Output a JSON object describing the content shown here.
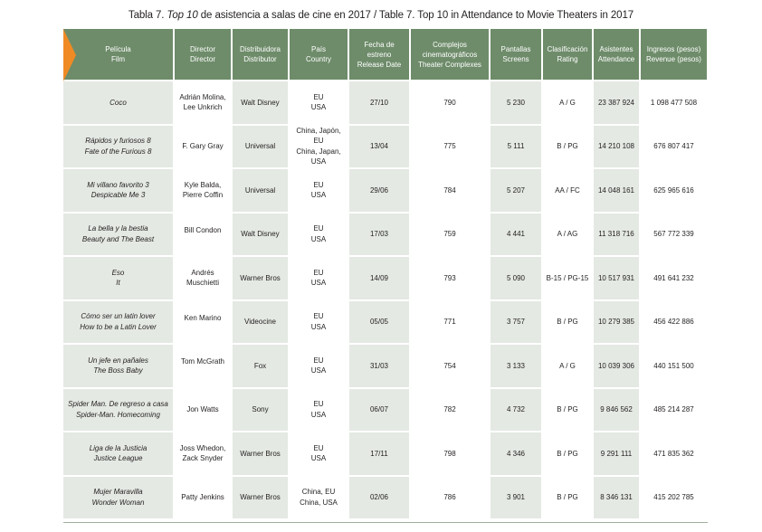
{
  "title": {
    "prefix": "Tabla 7. ",
    "italic": "Top 10",
    "suffix": " de asistencia a salas de cine en 2017 / Table 7. Top 10 in Attendance to Movie Theaters in 2017"
  },
  "columns": [
    {
      "es": "Película",
      "en": "Film"
    },
    {
      "es": "Director",
      "en": "Director"
    },
    {
      "es": "Distribuidora",
      "en": "Distributor"
    },
    {
      "es": "País",
      "en": "Country"
    },
    {
      "es": "Fecha de estreno",
      "en": "Release Date"
    },
    {
      "es": "Complejos cinematográficos",
      "en": "Theater Complexes"
    },
    {
      "es": "Pantallas",
      "en": "Screens"
    },
    {
      "es": "Clasificación",
      "en": "Rating"
    },
    {
      "es": "Asistentes",
      "en": "Attendance"
    },
    {
      "es": "Ingresos (pesos)",
      "en": "Revenue (pesos)"
    }
  ],
  "rows": [
    {
      "film": [
        "Coco"
      ],
      "director": [
        "Adrián Molina,",
        "Lee Unkrich"
      ],
      "distributor": "Walt Disney",
      "country": [
        "EU",
        "USA"
      ],
      "date": "27/10",
      "complexes": "790",
      "screens": "5 230",
      "rating": "A / G",
      "attendance": "23 387 924",
      "revenue": "1 098 477 508"
    },
    {
      "film": [
        "Rápidos y furiosos 8",
        "Fate of the Furious 8"
      ],
      "director": [
        "F. Gary Gray"
      ],
      "distributor": "Universal",
      "country": [
        "China, Japón,",
        "EU",
        "China, Japan,",
        "USA"
      ],
      "date": "13/04",
      "complexes": "775",
      "screens": "5 111",
      "rating": "B / PG",
      "attendance": "14 210 108",
      "revenue": "676 807 417"
    },
    {
      "film": [
        "Mi villano favorito 3",
        "Despicable Me 3"
      ],
      "director": [
        "Kyle Balda,",
        "Pierre Coffin"
      ],
      "distributor": "Universal",
      "country": [
        "EU",
        "USA"
      ],
      "date": "29/06",
      "complexes": "784",
      "screens": "5 207",
      "rating": "AA / FC",
      "attendance": "14 048 161",
      "revenue": "625 965 616"
    },
    {
      "film": [
        "La bella y la bestia",
        "Beauty and The Beast"
      ],
      "director": [
        "Bill Condon"
      ],
      "distributor": "Walt Disney",
      "country": [
        "EU",
        "USA"
      ],
      "date": "17/03",
      "complexes": "759",
      "screens": "4 441",
      "rating": "A / AG",
      "attendance": "11 318 716",
      "revenue": "567 772 339"
    },
    {
      "film": [
        "Eso",
        "It"
      ],
      "director": [
        "Andrés",
        "Muschietti"
      ],
      "distributor": "Warner Bros",
      "country": [
        "EU",
        "USA"
      ],
      "date": "14/09",
      "complexes": "793",
      "screens": "5 090",
      "rating": "B-15 / PG-15",
      "attendance": "10 517 931",
      "revenue": "491 641 232"
    },
    {
      "film": [
        "Cómo ser un latin lover",
        "How to be a Latin Lover"
      ],
      "director": [
        "Ken Marino"
      ],
      "distributor": "Videocine",
      "country": [
        "EU",
        "USA"
      ],
      "date": "05/05",
      "complexes": "771",
      "screens": "3 757",
      "rating": "B / PG",
      "attendance": "10 279 385",
      "revenue": "456 422 886"
    },
    {
      "film": [
        "Un jefe en pañales",
        "The Boss Baby"
      ],
      "director": [
        "Tom McGrath"
      ],
      "distributor": "Fox",
      "country": [
        "EU",
        "USA"
      ],
      "date": "31/03",
      "complexes": "754",
      "screens": "3 133",
      "rating": "A / G",
      "attendance": "10 039 306",
      "revenue": "440 151 500"
    },
    {
      "film": [
        "Spider Man. De regreso a casa",
        "Spider-Man. Homecoming"
      ],
      "director": [
        "Jon Watts"
      ],
      "distributor": "Sony",
      "country": [
        "EU",
        "USA"
      ],
      "date": "06/07",
      "complexes": "782",
      "screens": "4 732",
      "rating": "B / PG",
      "attendance": "9 846 562",
      "revenue": "485 214 287"
    },
    {
      "film": [
        "Liga de la Justicia",
        "Justice League"
      ],
      "director": [
        "Joss Whedon,",
        "Zack Snyder"
      ],
      "distributor": "Warner Bros",
      "country": [
        "EU",
        "USA"
      ],
      "date": "17/11",
      "complexes": "798",
      "screens": "4 346",
      "rating": "B / PG",
      "attendance": "9 291 111",
      "revenue": "471 835 362"
    },
    {
      "film": [
        "Mujer Maravilla",
        "Wonder Woman"
      ],
      "director": [
        "Patty Jenkins"
      ],
      "distributor": "Warner Bros",
      "country": [
        "China, EU",
        "China, USA"
      ],
      "date": "02/06",
      "complexes": "786",
      "screens": "3 901",
      "rating": "B / PG",
      "attendance": "8 346 131",
      "revenue": "415 202 785"
    }
  ]
}
